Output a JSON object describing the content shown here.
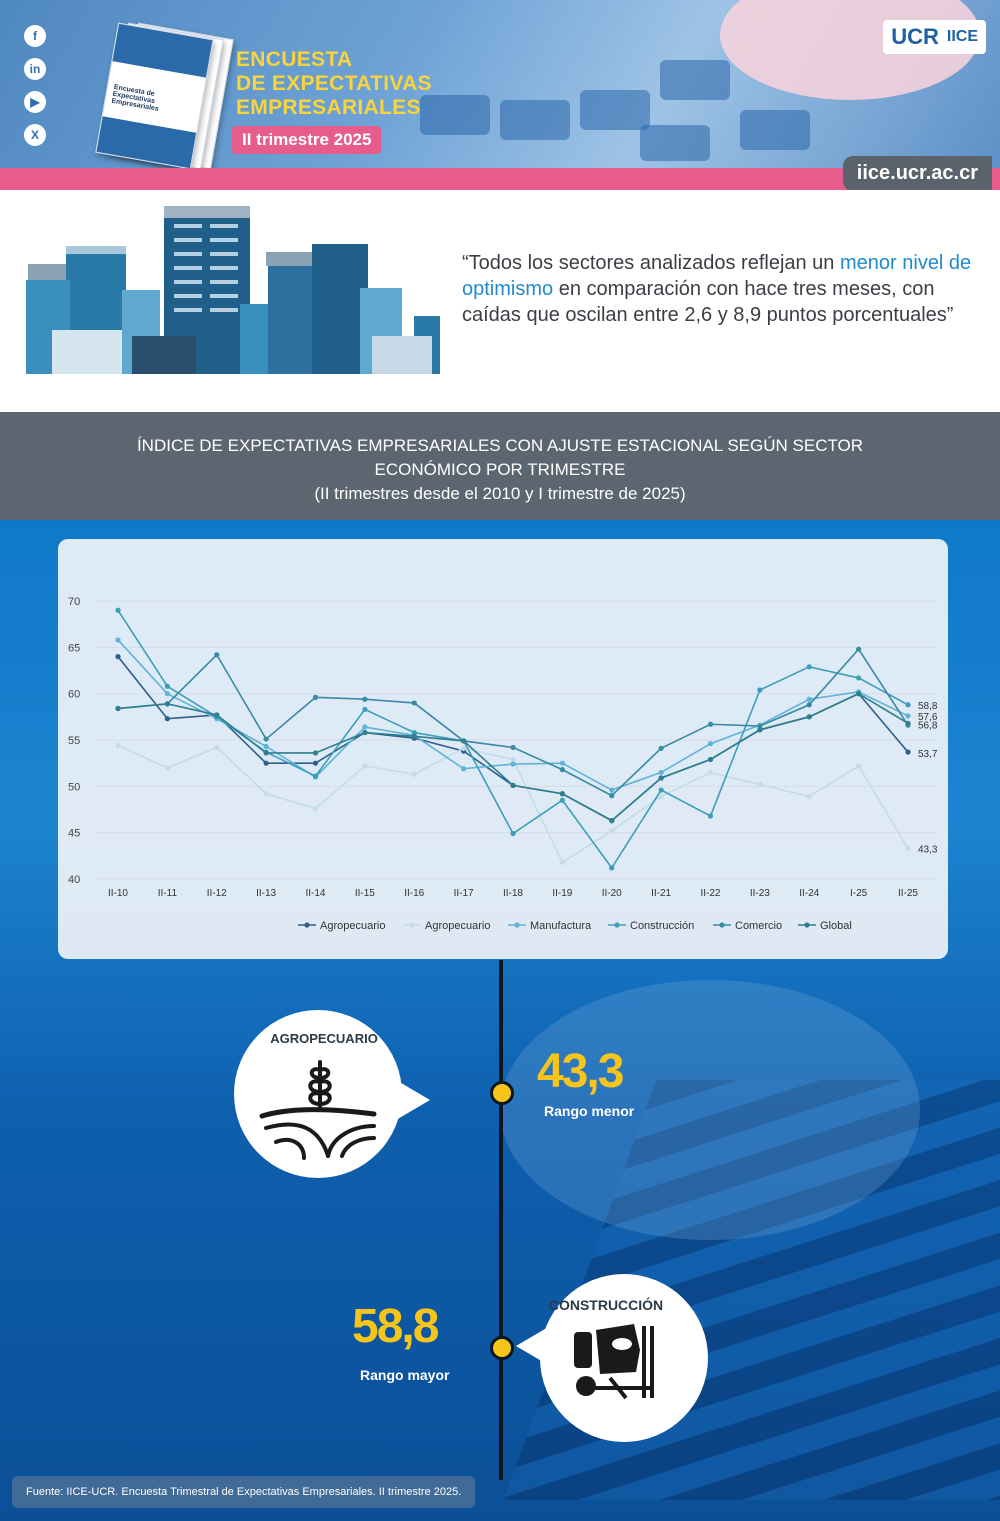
{
  "header": {
    "title_line1": "ENCUESTA",
    "title_line2": "DE EXPECTATIVAS",
    "title_line3": "EMPRESARIALES",
    "period": "II trimestre 2025",
    "url": "iice.ucr.ac.cr",
    "logo_ucr": "UCR",
    "logo_iice": "IICE",
    "booklet_title": "Encuesta de Expectativas Empresariales",
    "social_icons": [
      "facebook-icon",
      "linkedin-icon",
      "youtube-icon",
      "x-icon"
    ]
  },
  "quote": {
    "open": "“Todos los sectores analizados reflejan un ",
    "highlight": "menor nivel de optimismo",
    "close": " en comparación con hace tres meses, con caídas que oscilan entre 2,6 y 8,9 puntos porcentuales”"
  },
  "chart_header": {
    "line1": "ÍNDICE DE EXPECTATIVAS EMPRESARIALES CON AJUSTE ESTACIONAL SEGÚN SECTOR",
    "line2": "ECONÓMICO POR TRIMESTRE",
    "line3": "(II trimestres desde el 2010 y I trimestre de 2025)"
  },
  "chart_data": {
    "type": "line",
    "title": "",
    "xlabel": "",
    "ylabel": "",
    "ylim": [
      40,
      70
    ],
    "yticks": [
      40,
      45,
      50,
      55,
      60,
      65,
      70
    ],
    "categories": [
      "II-10",
      "II-11",
      "II-12",
      "II-13",
      "II-14",
      "II-15",
      "II-16",
      "II-17",
      "II-18",
      "II-19",
      "II-20",
      "II-21",
      "II-22",
      "II-23",
      "II-24",
      "I-25",
      "II-25"
    ],
    "grid": true,
    "legend_position": "bottom",
    "series": [
      {
        "name": "Agropecuario",
        "color": "#2f5f8a",
        "values": [
          64.0,
          57.3,
          57.7,
          52.5,
          52.5,
          55.8,
          55.2,
          53.8,
          50.1,
          49.2,
          46.3,
          50.9,
          52.9,
          56.1,
          57.5,
          60.0,
          53.7
        ]
      },
      {
        "name": "Agropecuario",
        "color": "#c4dbe8",
        "values": [
          54.4,
          52.0,
          54.2,
          49.2,
          47.6,
          52.2,
          51.3,
          54.1,
          52.9,
          41.8,
          45.2,
          48.9,
          51.5,
          50.2,
          48.9,
          52.2,
          43.3
        ]
      },
      {
        "name": "Manufactura",
        "color": "#5fb3d6",
        "values": [
          65.8,
          60.0,
          57.3,
          54.3,
          51.0,
          56.4,
          55.5,
          51.9,
          52.4,
          52.5,
          49.6,
          51.5,
          54.6,
          56.6,
          59.4,
          60.2,
          57.6
        ]
      },
      {
        "name": "Construcción",
        "color": "#3b9fb9",
        "values": [
          69.0,
          60.8,
          57.5,
          53.7,
          51.1,
          58.3,
          55.8,
          54.9,
          44.9,
          48.5,
          41.2,
          49.6,
          46.8,
          60.4,
          62.9,
          61.7,
          58.8
        ]
      },
      {
        "name": "Comercio",
        "color": "#3a8aa5",
        "values": [
          58.4,
          58.9,
          64.2,
          55.1,
          59.6,
          59.4,
          59.0,
          54.9,
          54.2,
          51.8,
          49.0,
          54.1,
          56.7,
          56.5,
          58.8,
          64.8,
          56.6
        ]
      },
      {
        "name": "Global",
        "color": "#2e7f8f",
        "values": [
          58.4,
          58.9,
          57.7,
          53.6,
          53.6,
          55.8,
          55.4,
          54.9,
          50.1,
          49.2,
          46.3,
          50.9,
          52.9,
          56.1,
          57.5,
          60.0,
          56.8
        ]
      }
    ],
    "end_labels": [
      "58,8",
      "57,6",
      "56,8",
      "53,7",
      "43,3"
    ]
  },
  "highlights": {
    "low": {
      "sector": "AGROPECUARIO",
      "value": "43,3",
      "label": "Rango menor",
      "icon": "wheat-field-icon"
    },
    "high": {
      "sector": "CONSTRUCCIÓN",
      "value": "58,8",
      "label": "Rango mayor",
      "icon": "concrete-mixer-icon"
    }
  },
  "source": "Fuente: IICE-UCR. Encuesta Trimestral de Expectativas Empresariales. II trimestre 2025."
}
